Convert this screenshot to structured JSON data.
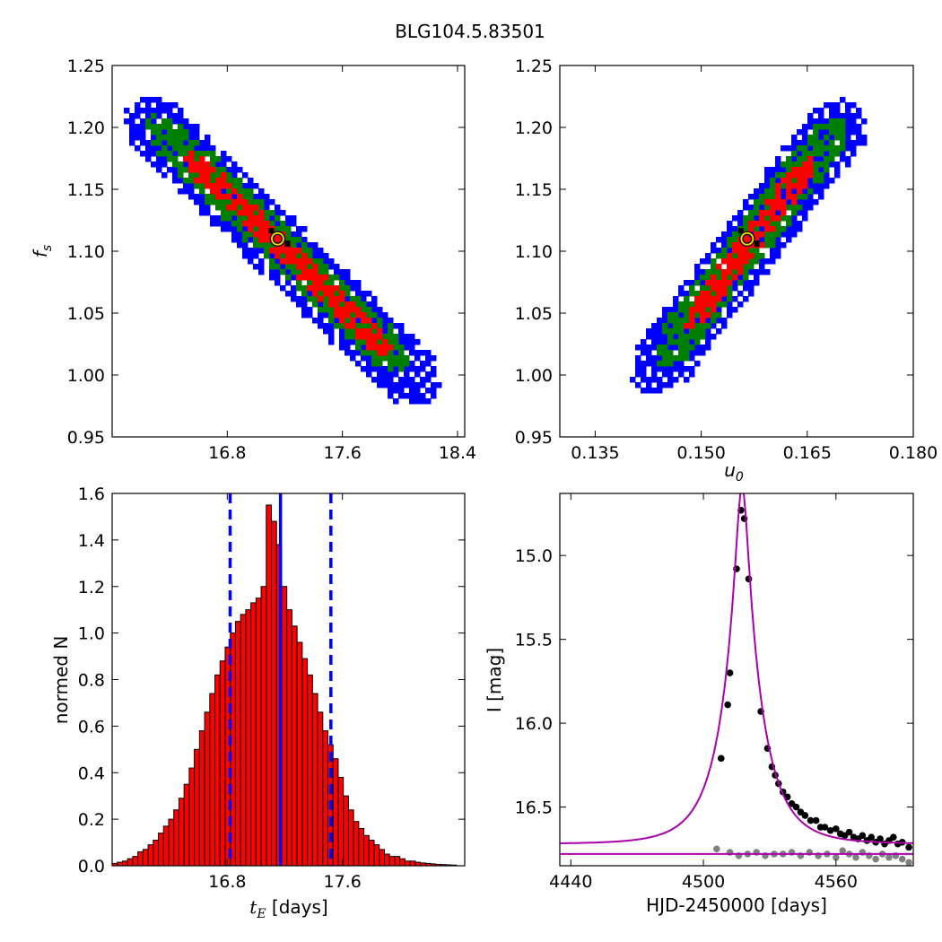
{
  "figure_title": "BLG104.5.83501",
  "chart_data": [
    {
      "id": "tE-fs",
      "type": "heatmap",
      "title": "",
      "xlabel": "",
      "ylabel": "f_s",
      "ylabel_sub": "s",
      "xlim": [
        16.0,
        18.45
      ],
      "ylim": [
        0.95,
        1.25
      ],
      "xticks": [
        16.8,
        17.6,
        18.4
      ],
      "xtick_labels": [
        "16.8",
        "17.6",
        "18.4"
      ],
      "yticks": [
        0.95,
        1.0,
        1.05,
        1.1,
        1.15,
        1.2,
        1.25
      ],
      "ytick_labels": [
        "0.95",
        "1.00",
        "1.05",
        "1.10",
        "1.15",
        "1.20",
        "1.25"
      ],
      "colors": {
        "outer": "#0000ff",
        "middle": "#007f00",
        "inner": "#ff0000",
        "best": "#000000",
        "marker_edge": "#e8d800"
      },
      "ridge": {
        "x_start": 16.13,
        "y_start": 1.22,
        "x_end": 18.2,
        "y_end": 0.985
      },
      "contours": {
        "inner_end": [
          16.5,
          17.9
        ],
        "middle_end": [
          16.25,
          18.0
        ],
        "outer_end": [
          16.08,
          18.25
        ]
      },
      "best_fit": {
        "x": 17.15,
        "y": 1.11
      }
    },
    {
      "id": "u0-fs",
      "type": "heatmap",
      "title": "",
      "xlabel": "u_0",
      "xlabel_sub": "0",
      "ylabel": "",
      "xlim": [
        0.13,
        0.18
      ],
      "ylim": [
        0.95,
        1.25
      ],
      "xticks": [
        0.135,
        0.15,
        0.165,
        0.18
      ],
      "xtick_labels": [
        "0.135",
        "0.150",
        "0.165",
        "0.180"
      ],
      "yticks": [
        0.95,
        1.0,
        1.05,
        1.1,
        1.15,
        1.2,
        1.25
      ],
      "ytick_labels": [
        "0.95",
        "1.00",
        "1.05",
        "1.10",
        "1.15",
        "1.20",
        "1.25"
      ],
      "ridge": {
        "x_start": 0.1415,
        "y_start": 0.992,
        "x_end": 0.1715,
        "y_end": 1.222
      },
      "contours": {
        "inner_end": [
          0.148,
          0.1655
        ],
        "middle_end": [
          0.144,
          0.1695
        ],
        "outer_end": [
          0.1405,
          0.1725
        ]
      },
      "best_fit": {
        "x": 0.1565,
        "y": 1.11
      }
    },
    {
      "id": "tE-hist",
      "type": "bar",
      "title": "",
      "xlabel": "t_E [days]",
      "xlabel_sub": "E",
      "xlabel_rest": " [days]",
      "ylabel": "normed N",
      "xlim": [
        16.0,
        18.45
      ],
      "ylim": [
        0.0,
        1.6
      ],
      "xticks": [
        16.8,
        17.6
      ],
      "xtick_labels": [
        "16.8",
        "17.6"
      ],
      "yticks": [
        0.0,
        0.2,
        0.4,
        0.6,
        0.8,
        1.0,
        1.2,
        1.4,
        1.6
      ],
      "ytick_labels": [
        "0.0",
        "0.2",
        "0.4",
        "0.6",
        "0.8",
        "1.0",
        "1.2",
        "1.4",
        "1.6"
      ],
      "bin_start": 16.0,
      "bin_width": 0.0357,
      "values": [
        0.01,
        0.015,
        0.02,
        0.03,
        0.04,
        0.06,
        0.07,
        0.09,
        0.11,
        0.14,
        0.17,
        0.2,
        0.24,
        0.29,
        0.35,
        0.42,
        0.5,
        0.58,
        0.66,
        0.74,
        0.82,
        0.88,
        0.94,
        1.0,
        1.05,
        1.08,
        1.1,
        1.13,
        1.15,
        1.2,
        1.55,
        1.48,
        1.38,
        1.2,
        1.1,
        1.03,
        0.96,
        0.89,
        0.82,
        0.74,
        0.66,
        0.58,
        0.52,
        0.46,
        0.38,
        0.3,
        0.24,
        0.19,
        0.16,
        0.13,
        0.11,
        0.09,
        0.07,
        0.05,
        0.04,
        0.04,
        0.03,
        0.02,
        0.02,
        0.015,
        0.012,
        0.01,
        0.008,
        0.006,
        0.005,
        0.004,
        0.003
      ],
      "colors": {
        "bar": "#ff0000",
        "edge": "#000000",
        "line": "#0000ff"
      },
      "median": 17.17,
      "interval": [
        16.82,
        17.52
      ]
    },
    {
      "id": "lightcurve",
      "type": "scatter",
      "title": "",
      "xlabel": "HJD-2450000 [days]",
      "ylabel": "I [mag]",
      "xlim": [
        4435,
        4595
      ],
      "ylim": [
        16.85,
        14.63
      ],
      "xticks": [
        4440,
        4500,
        4560
      ],
      "xtick_labels": [
        "4440",
        "4500",
        "4560"
      ],
      "yticks": [
        15.0,
        15.5,
        16.0,
        16.5
      ],
      "ytick_labels": [
        "15.0",
        "15.5",
        "16.0",
        "16.5"
      ],
      "colors": {
        "model": "#aa00aa",
        "data": "#000000",
        "residual": "#808080"
      },
      "model": {
        "t0": 4517.5,
        "u0": 0.155,
        "tE": 17.15,
        "I_base": 16.72,
        "fs": 1.11,
        "residual_level": 16.78
      },
      "peak_points": [
        {
          "x": 4508.0,
          "y": 16.21
        },
        {
          "x": 4511.0,
          "y": 15.89
        },
        {
          "x": 4512.0,
          "y": 15.7
        },
        {
          "x": 4515.0,
          "y": 15.08
        },
        {
          "x": 4517.0,
          "y": 14.73
        },
        {
          "x": 4518.5,
          "y": 14.78
        },
        {
          "x": 4520.5,
          "y": 15.14
        },
        {
          "x": 4526.0,
          "y": 15.93
        },
        {
          "x": 4529.0,
          "y": 16.15
        },
        {
          "x": 4531.0,
          "y": 16.26
        },
        {
          "x": 4532.5,
          "y": 16.31
        },
        {
          "x": 4534.0,
          "y": 16.36
        }
      ],
      "tail_points": [
        {
          "x": 4536.0,
          "y": 16.41
        },
        {
          "x": 4538.0,
          "y": 16.44
        },
        {
          "x": 4540.0,
          "y": 16.48
        },
        {
          "x": 4542.0,
          "y": 16.5
        },
        {
          "x": 4544.0,
          "y": 16.53
        },
        {
          "x": 4546.0,
          "y": 16.55
        },
        {
          "x": 4548.5,
          "y": 16.58
        },
        {
          "x": 4551.0,
          "y": 16.58
        },
        {
          "x": 4553.0,
          "y": 16.62
        },
        {
          "x": 4555.0,
          "y": 16.62
        },
        {
          "x": 4557.5,
          "y": 16.64
        },
        {
          "x": 4560.0,
          "y": 16.63
        },
        {
          "x": 4562.0,
          "y": 16.66
        },
        {
          "x": 4564.0,
          "y": 16.67
        },
        {
          "x": 4566.0,
          "y": 16.65
        },
        {
          "x": 4568.0,
          "y": 16.68
        },
        {
          "x": 4570.0,
          "y": 16.69
        },
        {
          "x": 4572.0,
          "y": 16.67
        },
        {
          "x": 4574.0,
          "y": 16.7
        },
        {
          "x": 4576.0,
          "y": 16.68
        },
        {
          "x": 4578.0,
          "y": 16.71
        },
        {
          "x": 4580.0,
          "y": 16.69
        },
        {
          "x": 4582.0,
          "y": 16.72
        },
        {
          "x": 4584.0,
          "y": 16.7
        },
        {
          "x": 4586.0,
          "y": 16.68
        },
        {
          "x": 4588.0,
          "y": 16.72
        },
        {
          "x": 4590.0,
          "y": 16.71
        },
        {
          "x": 4593.0,
          "y": 16.74
        }
      ],
      "residual_points": [
        {
          "x": 4506.0,
          "y": 16.75
        },
        {
          "x": 4512.0,
          "y": 16.77
        },
        {
          "x": 4516.0,
          "y": 16.79
        },
        {
          "x": 4520.0,
          "y": 16.78
        },
        {
          "x": 4524.0,
          "y": 16.77
        },
        {
          "x": 4528.0,
          "y": 16.79
        },
        {
          "x": 4532.0,
          "y": 16.78
        },
        {
          "x": 4536.0,
          "y": 16.78
        },
        {
          "x": 4540.0,
          "y": 16.77
        },
        {
          "x": 4544.0,
          "y": 16.79
        },
        {
          "x": 4548.0,
          "y": 16.77
        },
        {
          "x": 4552.0,
          "y": 16.79
        },
        {
          "x": 4556.0,
          "y": 16.78
        },
        {
          "x": 4560.0,
          "y": 16.8
        },
        {
          "x": 4563.0,
          "y": 16.76
        },
        {
          "x": 4566.0,
          "y": 16.78
        },
        {
          "x": 4569.0,
          "y": 16.8
        },
        {
          "x": 4572.0,
          "y": 16.77
        },
        {
          "x": 4575.0,
          "y": 16.79
        },
        {
          "x": 4578.0,
          "y": 16.81
        },
        {
          "x": 4581.0,
          "y": 16.78
        },
        {
          "x": 4584.0,
          "y": 16.8
        },
        {
          "x": 4587.0,
          "y": 16.79
        },
        {
          "x": 4590.0,
          "y": 16.81
        },
        {
          "x": 4593.0,
          "y": 16.83
        }
      ]
    }
  ]
}
